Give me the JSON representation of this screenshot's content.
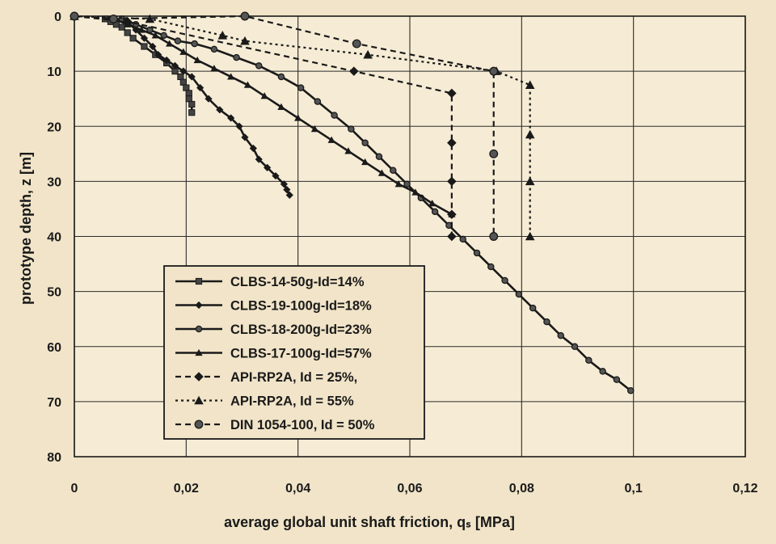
{
  "chart_data": {
    "type": "line",
    "xlabel": "average global unit shaft friction, qₛ [MPa]",
    "ylabel": "prototype depth, z [m]",
    "xlim": [
      0,
      0.12
    ],
    "ylim": [
      0,
      80
    ],
    "y_inverted": true,
    "x_ticks": [
      "0",
      "0,02",
      "0,04",
      "0,06",
      "0,08",
      "0,1",
      "0,12"
    ],
    "x_tick_values": [
      0,
      0.02,
      0.04,
      0.06,
      0.08,
      0.1,
      0.12
    ],
    "y_ticks": [
      "0",
      "10",
      "20",
      "30",
      "40",
      "50",
      "60",
      "70",
      "80"
    ],
    "y_tick_values": [
      0,
      10,
      20,
      30,
      40,
      50,
      60,
      70,
      80
    ],
    "grid": true,
    "legend_position": "bottom-left",
    "series": [
      {
        "name": "CLBS-14-50g-Id=14%",
        "style": "solid",
        "marker": "square",
        "color": "#1a1a1a",
        "x": [
          0.0055,
          0.0065,
          0.0075,
          0.0085,
          0.0095,
          0.0105,
          0.0125,
          0.0145,
          0.0165,
          0.018,
          0.019,
          0.0195,
          0.02,
          0.0205,
          0.0205,
          0.021,
          0.021
        ],
        "y": [
          0.5,
          1.0,
          1.5,
          2.0,
          3.0,
          4.0,
          5.5,
          7.0,
          8.5,
          10.0,
          11.0,
          12.0,
          13.0,
          14.0,
          15.0,
          16.0,
          17.5
        ]
      },
      {
        "name": "CLBS-19-100g-Id=18%",
        "style": "solid",
        "marker": "diamond",
        "color": "#1a1a1a",
        "x": [
          0.0095,
          0.011,
          0.0125,
          0.014,
          0.015,
          0.0165,
          0.018,
          0.0195,
          0.021,
          0.0225,
          0.024,
          0.026,
          0.028,
          0.0295,
          0.0305,
          0.032,
          0.033,
          0.0345,
          0.036,
          0.0375,
          0.038,
          0.0385
        ],
        "y": [
          1.0,
          2.5,
          4.0,
          5.5,
          7.0,
          8.0,
          9.0,
          10.0,
          11.0,
          13.0,
          15.0,
          17.0,
          18.5,
          20.0,
          22.0,
          24.0,
          26.0,
          27.5,
          29.0,
          30.5,
          31.5,
          32.5
        ]
      },
      {
        "name": "CLBS-18-200g-Id=23%",
        "style": "solid",
        "marker": "circle",
        "color": "#1a1a1a",
        "x": [
          0.0085,
          0.011,
          0.0135,
          0.016,
          0.0185,
          0.0215,
          0.025,
          0.029,
          0.033,
          0.037,
          0.0405,
          0.0435,
          0.0465,
          0.0495,
          0.052,
          0.0545,
          0.057,
          0.0595,
          0.062,
          0.0645,
          0.067,
          0.0695,
          0.072,
          0.0745,
          0.077,
          0.0795,
          0.082,
          0.0845,
          0.087,
          0.0895,
          0.092,
          0.0945,
          0.097,
          0.0995
        ],
        "y": [
          0.5,
          1.5,
          2.5,
          3.5,
          4.5,
          5.0,
          6.0,
          7.5,
          9.0,
          11.0,
          13.0,
          15.5,
          18.0,
          20.5,
          23.0,
          25.5,
          28.0,
          30.5,
          33.0,
          35.5,
          38.0,
          40.5,
          43.0,
          45.5,
          48.0,
          50.5,
          53.0,
          55.5,
          58.0,
          60.0,
          62.5,
          64.5,
          66.0,
          68.0
        ]
      },
      {
        "name": "CLBS-17-100g-Id=57%",
        "style": "solid",
        "marker": "triangle",
        "color": "#1a1a1a",
        "x": [
          0.007,
          0.0095,
          0.012,
          0.0145,
          0.017,
          0.0195,
          0.022,
          0.025,
          0.028,
          0.031,
          0.034,
          0.037,
          0.04,
          0.043,
          0.046,
          0.049,
          0.052,
          0.055,
          0.058,
          0.061,
          0.064,
          0.0675
        ],
        "y": [
          0.5,
          1.5,
          2.5,
          3.5,
          5.0,
          6.5,
          8.0,
          9.5,
          11.0,
          12.5,
          14.5,
          16.5,
          18.5,
          20.5,
          22.5,
          24.5,
          26.5,
          28.5,
          30.5,
          32.0,
          34.0,
          36.0
        ]
      },
      {
        "name": "API-RP2A, Id = 25%,",
        "style": "dashed",
        "marker": "diamond",
        "color": "#1a1a1a",
        "x": [
          0.0,
          0.0095,
          0.05,
          0.0675,
          0.0675,
          0.0675,
          0.0675,
          0.0675
        ],
        "y": [
          0.0,
          1.0,
          10.0,
          14.0,
          23.0,
          30.0,
          36.0,
          40.0
        ]
      },
      {
        "name": "API-RP2A, Id = 55%",
        "style": "dotted",
        "marker": "triangle",
        "color": "#1a1a1a",
        "x": [
          0.0,
          0.0135,
          0.0265,
          0.0305,
          0.0525,
          0.0755,
          0.0815,
          0.0815,
          0.0815,
          0.0815
        ],
        "y": [
          0.0,
          0.5,
          3.5,
          4.5,
          7.0,
          10.0,
          12.5,
          21.5,
          30.0,
          40.0
        ]
      },
      {
        "name": "DIN 1054-100, Id = 50%",
        "style": "dashed",
        "marker": "circle",
        "color": "#1a1a1a",
        "x": [
          0.0,
          0.007,
          0.0305,
          0.0505,
          0.075,
          0.075,
          0.075
        ],
        "y": [
          0.0,
          0.5,
          0.0,
          5.0,
          10.0,
          25.0,
          40.0
        ]
      }
    ]
  }
}
